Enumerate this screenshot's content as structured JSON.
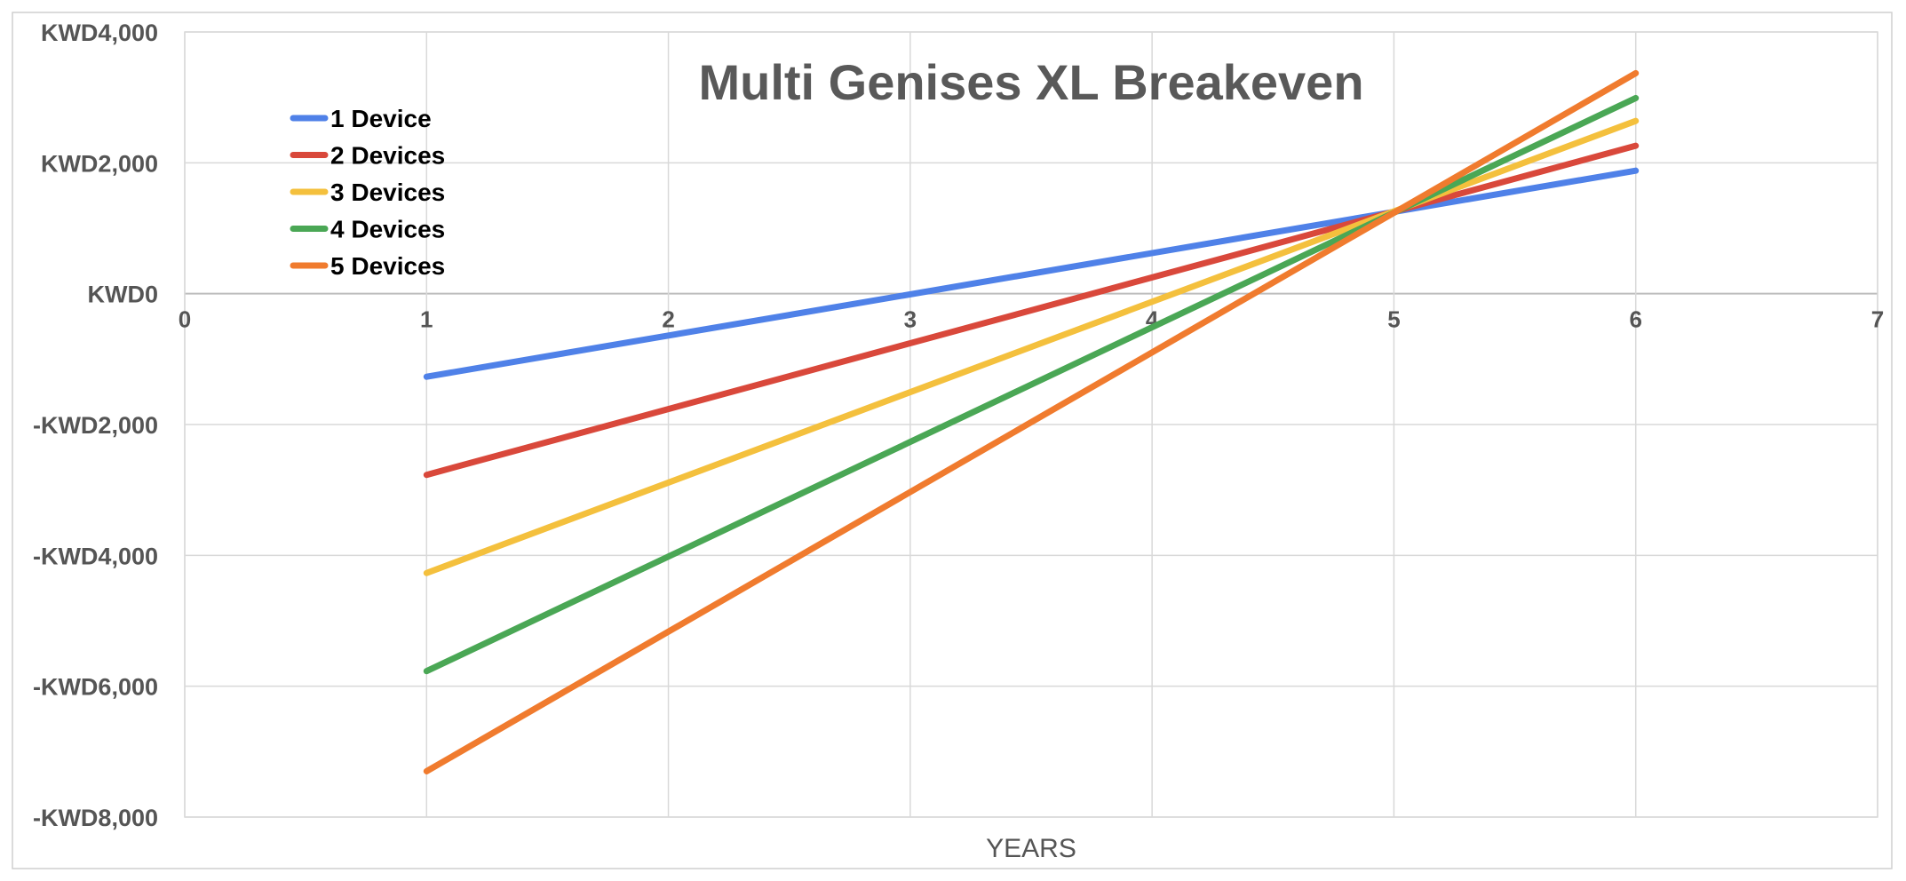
{
  "chart_data": {
    "type": "line",
    "title": "Multi Genises XL Breakeven",
    "xlabel": "YEARS",
    "ylabel": "",
    "xlim": [
      0,
      7
    ],
    "ylim": [
      -8000,
      4000
    ],
    "x_ticks": [
      "0",
      "1",
      "2",
      "3",
      "4",
      "5",
      "6",
      "7"
    ],
    "y_ticks": [
      {
        "value": 4000,
        "label": "KWD4,000"
      },
      {
        "value": 2000,
        "label": "KWD2,000"
      },
      {
        "value": 0,
        "label": "KWD0"
      },
      {
        "value": -2000,
        "label": "-KWD2,000"
      },
      {
        "value": -4000,
        "label": "-KWD4,000"
      },
      {
        "value": -6000,
        "label": "-KWD6,000"
      },
      {
        "value": -8000,
        "label": "-KWD8,000"
      }
    ],
    "grid": true,
    "legend_position": "top-left",
    "x": [
      1,
      6
    ],
    "series": [
      {
        "name": "1 Device",
        "color": "#4f81e8",
        "values": [
          -1270,
          1880
        ]
      },
      {
        "name": "2 Devices",
        "color": "#d9483b",
        "values": [
          -2770,
          2260
        ]
      },
      {
        "name": "3 Devices",
        "color": "#f4c03d",
        "values": [
          -4270,
          2640
        ]
      },
      {
        "name": "4 Devices",
        "color": "#4aa755",
        "values": [
          -5770,
          2990
        ]
      },
      {
        "name": "5 Devices",
        "color": "#f07b2e",
        "values": [
          -7300,
          3370
        ]
      }
    ]
  }
}
